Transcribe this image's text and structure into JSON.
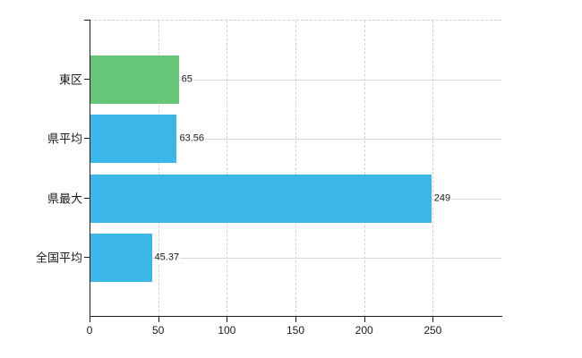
{
  "chart_data": {
    "type": "bar",
    "orientation": "horizontal",
    "title": "",
    "categories": [
      "東区",
      "県平均",
      "県最大",
      "全国平均"
    ],
    "values": [
      65,
      63.56,
      249,
      45.37
    ],
    "value_labels": [
      "65",
      "63.56",
      "249",
      "45.37"
    ],
    "bar_colors": [
      "#66c678",
      "#3bb6e9",
      "#3bb6e9",
      "#3bb6e9"
    ],
    "x_tick_values": [
      0,
      50,
      100,
      150,
      200,
      250
    ],
    "x_tick_labels": [
      "0",
      "50",
      "100",
      "150",
      "200",
      "250"
    ],
    "xlim": [
      0,
      300
    ],
    "grid": {
      "vertical_style": "dashed",
      "horizontal_style": "solid",
      "top_border_style": "dashed"
    },
    "legend_position": "none"
  },
  "colors": {
    "background": "#ffffff",
    "axis": "#1a1a1a",
    "grid_vertical": "#d3cfda",
    "grid_horizontal": "#d9d9d9",
    "text": "#1a1a1a",
    "green_bar": "#66c678",
    "blue_bar": "#3bb6e9"
  }
}
